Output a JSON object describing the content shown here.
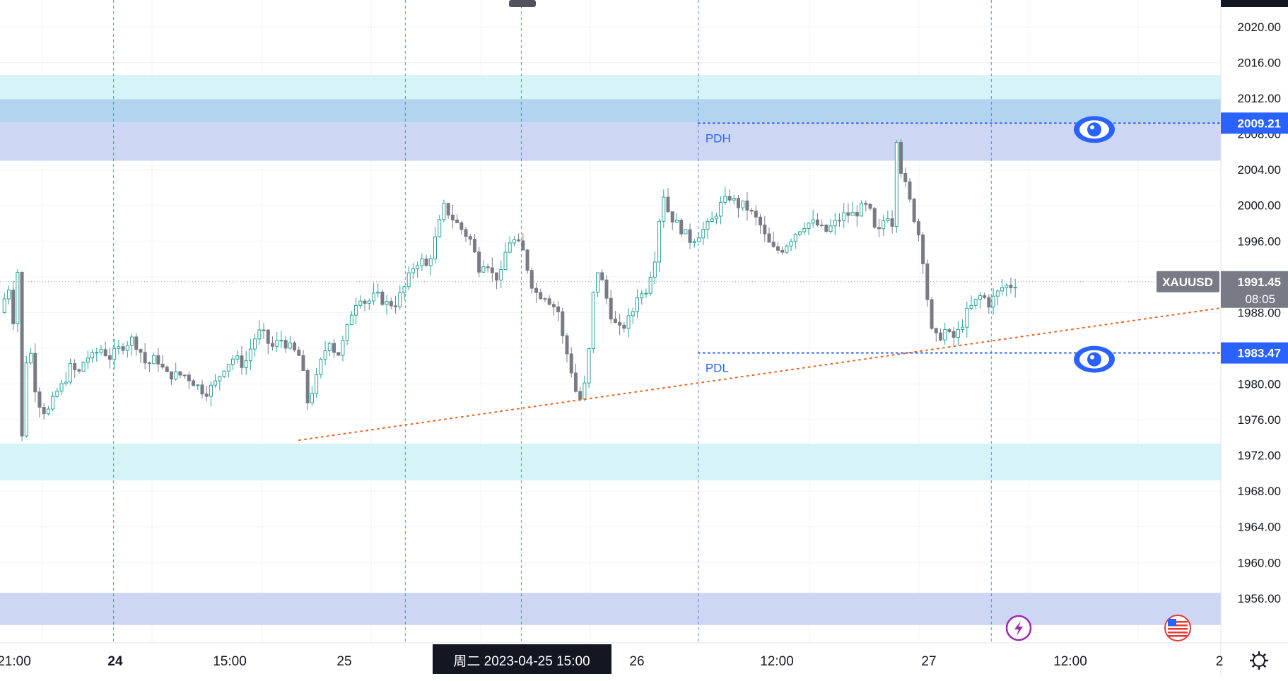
{
  "chart_data": {
    "type": "candlestick",
    "symbol": "XAUUSD",
    "last_price": "1991.45",
    "countdown": "08:05",
    "ylim": [
      1951,
      2023
    ],
    "y_ticks": [
      "2020.00",
      "2016.00",
      "2012.00",
      "2008.00",
      "2004.00",
      "2000.00",
      "1996.00",
      "1992.00",
      "1988.00",
      "1984.00",
      "1980.00",
      "1976.00",
      "1972.00",
      "1968.00",
      "1964.00",
      "1960.00",
      "1956.00"
    ],
    "x_ticks": [
      "21:00",
      "24",
      "15:00",
      "25",
      "26",
      "12:00",
      "27",
      "12:00",
      "2"
    ],
    "crosshair_label": "周二 2023-04-25   15:00",
    "levels": [
      {
        "name": "PDH",
        "price": "2009.21"
      },
      {
        "name": "PDL",
        "price": "1983.47"
      }
    ],
    "zones": [
      {
        "from": 2009.0,
        "to": 2014.6,
        "color": "#d6f3f7"
      },
      {
        "from": 2009.3,
        "to": 2011.9,
        "color": "#b3d4ee"
      },
      {
        "from": 2005.0,
        "to": 2009.3,
        "color": "#cdd6f2"
      },
      {
        "from": 1969.2,
        "to": 1973.3,
        "color": "#d6f3f7"
      },
      {
        "from": 1953.0,
        "to": 1956.6,
        "color": "#cdd6f2"
      }
    ],
    "trendline": {
      "start": [
        0.245,
        1973.7
      ],
      "end": [
        1.0,
        1988.5
      ],
      "color": "#e8601c"
    },
    "price_path": [
      [
        0.0,
        1988
      ],
      [
        0.007,
        1991
      ],
      [
        0.012,
        1986
      ],
      [
        0.016,
        1997
      ],
      [
        0.018,
        1974
      ],
      [
        0.023,
        1986
      ],
      [
        0.028,
        1980
      ],
      [
        0.034,
        1977
      ],
      [
        0.04,
        1977
      ],
      [
        0.046,
        1979
      ],
      [
        0.052,
        1980
      ],
      [
        0.058,
        1982
      ],
      [
        0.064,
        1981
      ],
      [
        0.07,
        1983
      ],
      [
        0.076,
        1983
      ],
      [
        0.082,
        1984
      ],
      [
        0.09,
        1983
      ],
      [
        0.098,
        1984
      ],
      [
        0.108,
        1985
      ],
      [
        0.114,
        1984
      ],
      [
        0.12,
        1982
      ],
      [
        0.128,
        1983
      ],
      [
        0.136,
        1981
      ],
      [
        0.144,
        1981
      ],
      [
        0.152,
        1981
      ],
      [
        0.16,
        1980
      ],
      [
        0.168,
        1979
      ],
      [
        0.176,
        1980
      ],
      [
        0.184,
        1982
      ],
      [
        0.192,
        1983
      ],
      [
        0.2,
        1982
      ],
      [
        0.208,
        1985
      ],
      [
        0.214,
        1986
      ],
      [
        0.222,
        1984
      ],
      [
        0.23,
        1985
      ],
      [
        0.238,
        1984
      ],
      [
        0.246,
        1983
      ],
      [
        0.252,
        1978
      ],
      [
        0.258,
        1980
      ],
      [
        0.264,
        1983
      ],
      [
        0.27,
        1985
      ],
      [
        0.276,
        1983
      ],
      [
        0.282,
        1985
      ],
      [
        0.288,
        1988
      ],
      [
        0.294,
        1990
      ],
      [
        0.3,
        1989
      ],
      [
        0.308,
        1990
      ],
      [
        0.316,
        1989
      ],
      [
        0.324,
        1989
      ],
      [
        0.332,
        1991
      ],
      [
        0.338,
        1993
      ],
      [
        0.344,
        1994
      ],
      [
        0.35,
        1993
      ],
      [
        0.356,
        1996
      ],
      [
        0.36,
        1998
      ],
      [
        0.364,
        2000
      ],
      [
        0.368,
        1999
      ],
      [
        0.374,
        1998
      ],
      [
        0.38,
        1997
      ],
      [
        0.386,
        1996
      ],
      [
        0.392,
        1993
      ],
      [
        0.398,
        1994
      ],
      [
        0.404,
        1992
      ],
      [
        0.41,
        1992
      ],
      [
        0.416,
        1996
      ],
      [
        0.422,
        1996
      ],
      [
        0.428,
        1995
      ],
      [
        0.432,
        1993
      ],
      [
        0.436,
        1991
      ],
      [
        0.44,
        1990
      ],
      [
        0.446,
        1990
      ],
      [
        0.452,
        1989
      ],
      [
        0.458,
        1988
      ],
      [
        0.462,
        1984
      ],
      [
        0.466,
        1983
      ],
      [
        0.47,
        1980
      ],
      [
        0.474,
        1978
      ],
      [
        0.478,
        1979
      ],
      [
        0.482,
        1983
      ],
      [
        0.486,
        1990
      ],
      [
        0.49,
        1993
      ],
      [
        0.494,
        1991
      ],
      [
        0.498,
        1989
      ],
      [
        0.502,
        1987
      ],
      [
        0.508,
        1986
      ],
      [
        0.514,
        1987
      ],
      [
        0.518,
        1988
      ],
      [
        0.522,
        1990
      ],
      [
        0.528,
        1990
      ],
      [
        0.534,
        1993
      ],
      [
        0.538,
        1995
      ],
      [
        0.542,
        2002
      ],
      [
        0.548,
        1999
      ],
      [
        0.554,
        1998
      ],
      [
        0.56,
        1997
      ],
      [
        0.566,
        1996
      ],
      [
        0.574,
        1997
      ],
      [
        0.582,
        1998
      ],
      [
        0.59,
        2000
      ],
      [
        0.598,
        2001
      ],
      [
        0.604,
        2000
      ],
      [
        0.61,
        2000
      ],
      [
        0.616,
        1999
      ],
      [
        0.622,
        1998
      ],
      [
        0.628,
        1996
      ],
      [
        0.634,
        1995
      ],
      [
        0.64,
        1995
      ],
      [
        0.646,
        1996
      ],
      [
        0.652,
        1997
      ],
      [
        0.66,
        1998
      ],
      [
        0.668,
        1998
      ],
      [
        0.676,
        1997
      ],
      [
        0.684,
        1998
      ],
      [
        0.692,
        1999
      ],
      [
        0.7,
        1999
      ],
      [
        0.708,
        2000
      ],
      [
        0.714,
        1999
      ],
      [
        0.718,
        1996
      ],
      [
        0.722,
        1998
      ],
      [
        0.727,
        1999
      ],
      [
        0.731,
        1998
      ],
      [
        0.734,
        2008
      ],
      [
        0.738,
        2004
      ],
      [
        0.742,
        2002
      ],
      [
        0.746,
        2000
      ],
      [
        0.75,
        1998
      ],
      [
        0.754,
        1996
      ],
      [
        0.758,
        1992
      ],
      [
        0.762,
        1986
      ],
      [
        0.768,
        1985
      ],
      [
        0.774,
        1986
      ],
      [
        0.78,
        1985
      ],
      [
        0.786,
        1986
      ],
      [
        0.792,
        1988
      ],
      [
        0.798,
        1989
      ],
      [
        0.804,
        1990
      ],
      [
        0.81,
        1989
      ],
      [
        0.816,
        1990
      ],
      [
        0.822,
        1991
      ],
      [
        0.828,
        1991
      ],
      [
        0.834,
        1991.45
      ]
    ]
  }
}
